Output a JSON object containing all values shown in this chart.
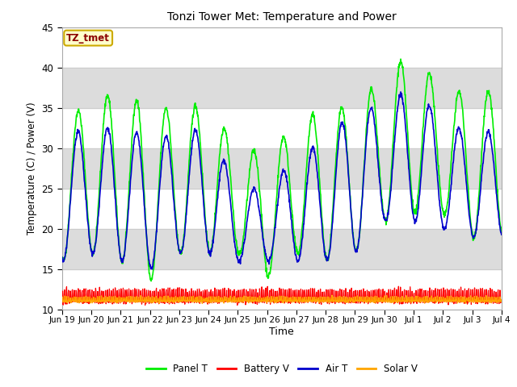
{
  "title": "Tonzi Tower Met: Temperature and Power",
  "xlabel": "Time",
  "ylabel": "Temperature (C) / Power (V)",
  "ylim": [
    10,
    45
  ],
  "yticks": [
    10,
    15,
    20,
    25,
    30,
    35,
    40,
    45
  ],
  "xlim_start": 0,
  "xlim_end": 15,
  "xtick_labels": [
    "Jun 19",
    "Jun 20",
    "Jun 21",
    "Jun 22",
    "Jun 23",
    "Jun 24",
    "Jun 25",
    "Jun 26",
    "Jun 27",
    "Jun 28",
    "Jun 29",
    "Jun 30",
    "Jul 1",
    "Jul 2",
    "Jul 3",
    "Jul 4"
  ],
  "legend_labels": [
    "Panel T",
    "Battery V",
    "Air T",
    "Solar V"
  ],
  "colors": {
    "panel_t": "#00EE00",
    "battery_v": "#FF0000",
    "air_t": "#0000CC",
    "solar_v": "#FFA500"
  },
  "annotation_text": "TZ_tmet",
  "annotation_color": "#8B0000",
  "annotation_bg": "#FFFFCC",
  "annotation_border": "#CCAA00",
  "plot_bg": "#FFFFFF",
  "fig_bg": "#FFFFFF",
  "band_color": "#DCDCDC",
  "grid_color": "#CCCCCC",
  "n_days": 15,
  "pts_per_day": 96,
  "panel_peaks": [
    33,
    36,
    37,
    35,
    35,
    35.5,
    30,
    29.5,
    33,
    35,
    35,
    39,
    42,
    37,
    37
  ],
  "panel_troughs": [
    16,
    17,
    16,
    13.5,
    17,
    17,
    17,
    14,
    17,
    16,
    17,
    21,
    22,
    22,
    19
  ],
  "air_peaks": [
    32,
    32,
    33,
    31,
    32,
    32.5,
    25,
    25,
    29,
    31,
    35,
    35,
    38,
    33,
    32
  ],
  "air_troughs": [
    16,
    17,
    16,
    15,
    17,
    17,
    16,
    16,
    16,
    16,
    17,
    21,
    21,
    20,
    19
  ]
}
